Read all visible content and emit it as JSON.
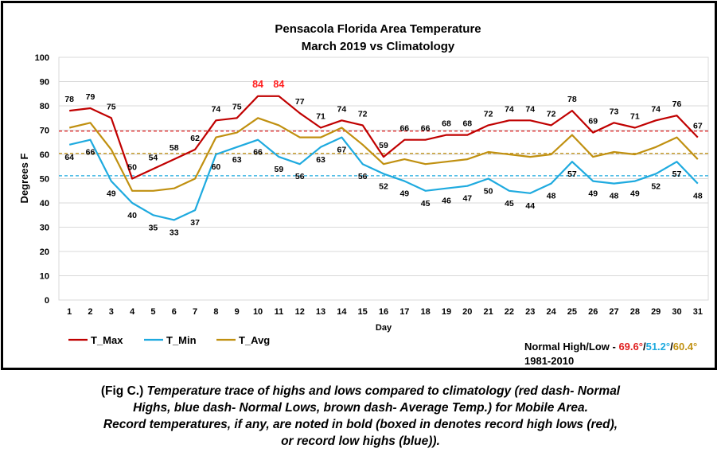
{
  "chart_data": {
    "type": "line",
    "title": "Pensacola Florida Area Temperature",
    "subtitle": "March 2019 vs Climatology",
    "xlabel": "Day",
    "ylabel": "Degrees F",
    "ylim": [
      0,
      100
    ],
    "yticks": [
      0,
      10,
      20,
      30,
      40,
      50,
      60,
      70,
      80,
      90,
      100
    ],
    "grid": true,
    "legend_position": "bottom-left",
    "x": [
      1,
      2,
      3,
      4,
      5,
      6,
      7,
      8,
      9,
      10,
      11,
      12,
      13,
      14,
      15,
      16,
      17,
      18,
      19,
      20,
      21,
      22,
      23,
      24,
      25,
      26,
      27,
      28,
      29,
      30,
      31
    ],
    "series": [
      {
        "name": "T_Max",
        "color": "#c00000",
        "values": [
          78,
          79,
          75,
          50,
          54,
          58,
          62,
          74,
          75,
          84,
          84,
          77,
          71,
          74,
          72,
          59,
          66,
          66,
          68,
          68,
          72,
          74,
          74,
          72,
          78,
          69,
          73,
          71,
          74,
          76,
          67
        ]
      },
      {
        "name": "T_Min",
        "color": "#1eaadf",
        "values": [
          64,
          66,
          49,
          40,
          35,
          33,
          37,
          60,
          63,
          66,
          59,
          56,
          63,
          67,
          56,
          52,
          49,
          45,
          46,
          47,
          50,
          45,
          44,
          48,
          57,
          49,
          48,
          49,
          52,
          57,
          48
        ]
      },
      {
        "name": "T_Avg",
        "color": "#c09010",
        "values": [
          71,
          73,
          62,
          45,
          45,
          46,
          50,
          67,
          69,
          75,
          72,
          67,
          67,
          71,
          64,
          56,
          58,
          56,
          57,
          58,
          61,
          60,
          59,
          60,
          68,
          59,
          61,
          60,
          63,
          67,
          58
        ]
      }
    ],
    "reference_lines": [
      {
        "value": 69.6,
        "color": "#e02020"
      },
      {
        "value": 60.4,
        "color": "#c09010"
      },
      {
        "value": 51.2,
        "color": "#1eaadf"
      }
    ],
    "record_highlight": {
      "days": [
        10,
        11
      ],
      "color": "#ff2020"
    }
  },
  "normals": {
    "label": "Normal High/Low - ",
    "high": "69.6°",
    "sep1": "/",
    "low": "51.2°",
    "sep2": "/",
    "avg": "60.4°",
    "period": "1981-2010"
  },
  "caption": {
    "line1_prefix": "(Fig C.) ",
    "line1_rest": "Temperature trace of highs and lows compared to climatology (red dash- Normal",
    "line2": "Highs, blue dash- Normal Lows, brown dash- Average Temp.) for Mobile Area.",
    "line3": "Record temperatures, if any, are noted in bold (boxed in denotes record high lows (red),",
    "line4": "or record low highs (blue))."
  }
}
